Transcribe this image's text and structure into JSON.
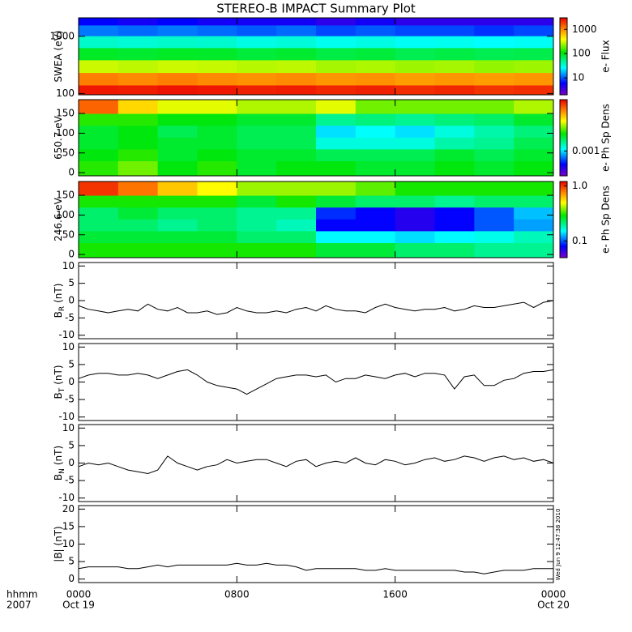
{
  "title": "STEREO-B IMPACT Summary Plot",
  "timestamp": "Wed Jun  9 12:47:38 2010",
  "x_axis": {
    "axis_title": [
      "hhmm",
      "2007"
    ],
    "xlim": [
      0,
      24
    ],
    "xticks": [
      {
        "value": 0,
        "label": "0000"
      },
      {
        "value": 8,
        "label": "0800"
      },
      {
        "value": 16,
        "label": "1600"
      },
      {
        "value": 24,
        "label": "0000"
      }
    ],
    "dates": [
      {
        "value": 0,
        "label": "Oct 19"
      },
      {
        "value": 24,
        "label": "Oct 20"
      }
    ],
    "x": [
      0,
      0.5,
      1,
      1.5,
      2,
      2.5,
      3,
      3.5,
      4,
      4.5,
      5,
      5.5,
      6,
      6.5,
      7,
      7.5,
      8,
      8.5,
      9,
      9.5,
      10,
      10.5,
      11,
      11.5,
      12,
      12.5,
      13,
      13.5,
      14,
      14.5,
      15,
      15.5,
      16,
      16.5,
      17,
      17.5,
      18,
      18.5,
      19,
      19.5,
      20,
      20.5,
      21,
      21.5,
      22,
      22.5,
      23,
      23.5,
      24
    ]
  },
  "chart_data": [
    {
      "type": "heatmap",
      "ylabel": "SWEA (eV)",
      "log": true,
      "ylim": [
        95,
        2100
      ],
      "yticks": [
        100,
        1000
      ],
      "x": [
        1,
        3,
        5,
        7,
        9,
        11,
        13,
        15,
        17,
        19,
        21,
        23
      ],
      "y": [
        110,
        180,
        300,
        500,
        800,
        1300,
        1900
      ],
      "z": [
        [
          2500,
          2400,
          2600,
          2500,
          2300,
          2400,
          2200,
          2300,
          2100,
          2200,
          2000,
          2100
        ],
        [
          1100,
          1000,
          1100,
          1000,
          950,
          1000,
          900,
          950,
          850,
          900,
          850,
          900
        ],
        [
          300,
          280,
          300,
          290,
          270,
          280,
          250,
          260,
          240,
          250,
          230,
          240
        ],
        [
          90,
          85,
          90,
          88,
          80,
          85,
          75,
          80,
          70,
          75,
          70,
          72
        ],
        [
          35,
          33,
          35,
          34,
          30,
          32,
          28,
          30,
          27,
          28,
          26,
          27
        ],
        [
          12,
          11,
          12,
          11,
          10,
          11,
          9,
          10,
          9,
          9,
          8,
          9
        ],
        [
          6,
          5,
          6,
          5,
          5,
          5,
          4,
          5,
          4,
          4,
          4,
          4
        ]
      ],
      "zlim": [
        2,
        3000
      ],
      "colorbar_ticks": [
        10,
        100,
        1000
      ],
      "colorbar_label": "e- Flux"
    },
    {
      "type": "heatmap",
      "ylabel": "650.7 eV",
      "ylim": [
        -8,
        185
      ],
      "yticks": [
        0,
        50,
        100,
        150
      ],
      "x": [
        1,
        3,
        5,
        7,
        9,
        11,
        13,
        15,
        17,
        19,
        21,
        23
      ],
      "y": [
        15,
        45,
        75,
        105,
        135,
        165
      ],
      "z": [
        [
          0.0025,
          0.003,
          0.0022,
          0.0025,
          0.002,
          0.0022,
          0.0022,
          0.002,
          0.002,
          0.0022,
          0.002,
          0.0022
        ],
        [
          0.0022,
          0.0025,
          0.002,
          0.0022,
          0.002,
          0.002,
          0.0018,
          0.0018,
          0.0018,
          0.002,
          0.0018,
          0.002
        ],
        [
          0.002,
          0.0022,
          0.002,
          0.002,
          0.0018,
          0.0018,
          0.0012,
          0.0012,
          0.0012,
          0.0014,
          0.0015,
          0.0018
        ],
        [
          0.002,
          0.0022,
          0.0018,
          0.002,
          0.0018,
          0.0018,
          0.001,
          0.0011,
          0.001,
          0.0012,
          0.0014,
          0.0016
        ],
        [
          0.0025,
          0.0025,
          0.0022,
          0.0022,
          0.002,
          0.002,
          0.0015,
          0.0016,
          0.0015,
          0.0016,
          0.0017,
          0.002
        ],
        [
          0.008,
          0.005,
          0.004,
          0.004,
          0.0035,
          0.0035,
          0.004,
          0.003,
          0.003,
          0.003,
          0.003,
          0.0035
        ]
      ],
      "zlim": [
        0.0003,
        0.012
      ],
      "colorbar_ticks": [
        0.001
      ],
      "colorbar_label": "e- Ph Sp Dens"
    },
    {
      "type": "heatmap",
      "ylabel": "246.6 eV",
      "ylim": [
        -8,
        185
      ],
      "yticks": [
        0,
        50,
        100,
        150
      ],
      "x": [
        1,
        3,
        5,
        7,
        9,
        11,
        13,
        15,
        17,
        19,
        21,
        23
      ],
      "y": [
        15,
        45,
        75,
        105,
        135,
        165
      ],
      "z": [
        [
          0.3,
          0.3,
          0.3,
          0.3,
          0.3,
          0.3,
          0.25,
          0.25,
          0.22,
          0.22,
          0.2,
          0.2
        ],
        [
          0.25,
          0.25,
          0.25,
          0.25,
          0.22,
          0.22,
          0.15,
          0.15,
          0.14,
          0.15,
          0.16,
          0.18
        ],
        [
          0.22,
          0.22,
          0.2,
          0.22,
          0.2,
          0.18,
          0.08,
          0.08,
          0.07,
          0.08,
          0.1,
          0.12
        ],
        [
          0.22,
          0.25,
          0.22,
          0.22,
          0.2,
          0.2,
          0.09,
          0.08,
          0.07,
          0.08,
          0.1,
          0.13
        ],
        [
          0.3,
          0.3,
          0.3,
          0.3,
          0.25,
          0.3,
          0.25,
          0.22,
          0.22,
          0.2,
          0.22,
          0.22
        ],
        [
          1,
          0.8,
          0.6,
          0.5,
          0.4,
          0.4,
          0.4,
          0.35,
          0.3,
          0.3,
          0.3,
          0.3
        ]
      ],
      "zlim": [
        0.05,
        1.2
      ],
      "colorbar_ticks": [
        0.1,
        {
          "value": 1,
          "label": "1.0"
        }
      ],
      "colorbar_label": "e- Ph Sp Dens"
    },
    {
      "type": "line",
      "ylabel": "B",
      "ylabel_sub": "R",
      "ylabel_unit": "(nT)",
      "color": "#000000",
      "ylim": [
        -11,
        11
      ],
      "yticks": [
        -10,
        -5,
        0,
        5,
        10
      ],
      "values": [
        -1.5,
        -2.5,
        -3,
        -3.5,
        -3,
        -2.5,
        -3,
        -1,
        -2.5,
        -3,
        -2,
        -3.5,
        -3.5,
        -3,
        -4,
        -3.5,
        -2,
        -3,
        -3.5,
        -3.5,
        -3,
        -3.5,
        -2.5,
        -2,
        -3,
        -1.5,
        -2.5,
        -3,
        -3,
        -3.5,
        -2,
        -1,
        -2,
        -2.5,
        -3,
        -2.5,
        -2.5,
        -2,
        -3,
        -2.5,
        -1.5,
        -2,
        -2,
        -1.5,
        -1,
        -0.5,
        -2,
        -0.5,
        0
      ]
    },
    {
      "type": "line",
      "ylabel": "B",
      "ylabel_sub": "T",
      "ylabel_unit": "(nT)",
      "color": "#000000",
      "ylim": [
        -11,
        11
      ],
      "yticks": [
        -10,
        -5,
        0,
        5,
        10
      ],
      "values": [
        1,
        2,
        2.5,
        2.5,
        2,
        2,
        2.5,
        2,
        1,
        2,
        3,
        3.5,
        2,
        0,
        -1,
        -1.5,
        -2,
        -3.5,
        -2,
        -0.5,
        1,
        1.5,
        2,
        2,
        1.5,
        2,
        0,
        1,
        1,
        2,
        1.5,
        1,
        2,
        2.5,
        1.5,
        2.5,
        2.5,
        2,
        -2,
        1.5,
        2,
        -1,
        -1,
        0.5,
        1,
        2.5,
        3,
        3,
        3.5
      ]
    },
    {
      "type": "line",
      "ylabel": "B",
      "ylabel_sub": "N",
      "ylabel_unit": "(nT)",
      "color": "#000000",
      "ylim": [
        -11,
        11
      ],
      "yticks": [
        -10,
        -5,
        0,
        5,
        10
      ],
      "values": [
        -1,
        0,
        -0.5,
        0,
        -1,
        -2,
        -2.5,
        -3,
        -2,
        2,
        0,
        -1,
        -2,
        -1,
        -0.5,
        1,
        0,
        0.5,
        1,
        1,
        0,
        -1,
        0.5,
        1,
        -1,
        0,
        0.5,
        0,
        1.5,
        0,
        -0.5,
        1,
        0.5,
        -0.5,
        0,
        1,
        1.5,
        0.5,
        1,
        2,
        1.5,
        0.5,
        1.5,
        2,
        1,
        1.5,
        0.5,
        1,
        0
      ]
    },
    {
      "type": "line",
      "ylabel": "|B| (nT)",
      "color": "#000000",
      "ylim": [
        -1,
        21
      ],
      "yticks": [
        0,
        5,
        10,
        15,
        20
      ],
      "values": [
        3,
        3.5,
        3.5,
        3.5,
        3.5,
        3,
        3,
        3.5,
        4,
        3.5,
        4,
        4,
        4,
        4,
        4,
        4,
        4.5,
        4,
        4,
        4.5,
        4,
        4,
        3.5,
        2.5,
        3,
        3,
        3,
        3,
        3,
        2.5,
        2.5,
        3,
        2.5,
        2.5,
        2.5,
        2.5,
        2.5,
        2.5,
        2.5,
        2,
        2,
        1.5,
        2,
        2.5,
        2.5,
        2.5,
        3,
        3,
        3
      ]
    }
  ]
}
